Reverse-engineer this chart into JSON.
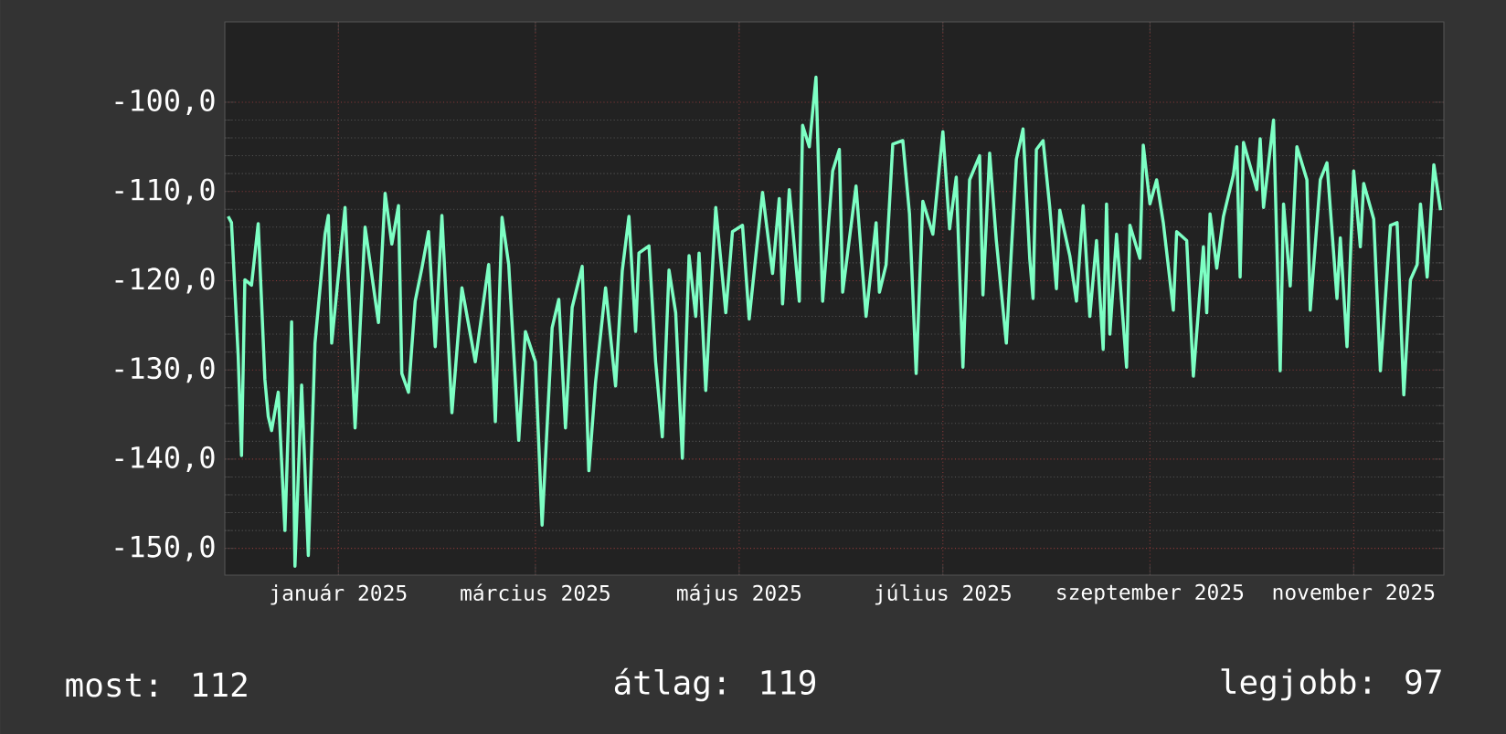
{
  "chart_data": {
    "type": "line",
    "color": "#7dffc4",
    "grid": true,
    "xlim": [
      "2024-11-28",
      "2025-11-28"
    ],
    "ylim": [
      -153,
      -91
    ],
    "xticks": [
      {
        "value": "2025-01-01",
        "label": "január 2025"
      },
      {
        "value": "2025-03-01",
        "label": "március 2025"
      },
      {
        "value": "2025-05-01",
        "label": "május 2025"
      },
      {
        "value": "2025-07-01",
        "label": "július 2025"
      },
      {
        "value": "2025-09-01",
        "label": "szeptember 2025"
      },
      {
        "value": "2025-11-01",
        "label": "november 2025"
      }
    ],
    "yticks": [
      {
        "value": -100,
        "label": "-100,0"
      },
      {
        "value": -110,
        "label": "-110,0"
      },
      {
        "value": -120,
        "label": "-120,0"
      },
      {
        "value": -130,
        "label": "-130,0"
      },
      {
        "value": -140,
        "label": "-140,0"
      },
      {
        "value": -150,
        "label": "-150,0"
      }
    ],
    "x": [
      "2024-11-29",
      "2024-11-30",
      "2024-12-02",
      "2024-12-03",
      "2024-12-04",
      "2024-12-06",
      "2024-12-08",
      "2024-12-10",
      "2024-12-11",
      "2024-12-12",
      "2024-12-14",
      "2024-12-16",
      "2024-12-18",
      "2024-12-19",
      "2024-12-21",
      "2024-12-23",
      "2024-12-25",
      "2024-12-28",
      "2024-12-29",
      "2024-12-30",
      "2025-01-03",
      "2025-01-04",
      "2025-01-06",
      "2025-01-09",
      "2025-01-13",
      "2025-01-15",
      "2025-01-17",
      "2025-01-19",
      "2025-01-20",
      "2025-01-22",
      "2025-01-24",
      "2025-01-26",
      "2025-01-28",
      "2025-01-30",
      "2025-02-01",
      "2025-02-04",
      "2025-02-07",
      "2025-02-11",
      "2025-02-13",
      "2025-02-15",
      "2025-02-17",
      "2025-02-19",
      "2025-02-21",
      "2025-02-24",
      "2025-02-26",
      "2025-03-01",
      "2025-03-03",
      "2025-03-06",
      "2025-03-08",
      "2025-03-10",
      "2025-03-12",
      "2025-03-15",
      "2025-03-17",
      "2025-03-19",
      "2025-03-22",
      "2025-03-25",
      "2025-03-27",
      "2025-03-29",
      "2025-03-31",
      "2025-04-01",
      "2025-04-04",
      "2025-04-06",
      "2025-04-08",
      "2025-04-10",
      "2025-04-12",
      "2025-04-14",
      "2025-04-16",
      "2025-04-18",
      "2025-04-19",
      "2025-04-21",
      "2025-04-24",
      "2025-04-27",
      "2025-04-29",
      "2025-05-02",
      "2025-05-04",
      "2025-05-08",
      "2025-05-11",
      "2025-05-13",
      "2025-05-14",
      "2025-05-16",
      "2025-05-19",
      "2025-05-20",
      "2025-05-22",
      "2025-05-24",
      "2025-05-25",
      "2025-05-26",
      "2025-05-29",
      "2025-05-31",
      "2025-06-01",
      "2025-06-05",
      "2025-06-08",
      "2025-06-11",
      "2025-06-12",
      "2025-06-14",
      "2025-06-16",
      "2025-06-19",
      "2025-06-21",
      "2025-06-23",
      "2025-06-25",
      "2025-06-28",
      "2025-07-01",
      "2025-07-03",
      "2025-07-05",
      "2025-07-07",
      "2025-07-09",
      "2025-07-12",
      "2025-07-13",
      "2025-07-15",
      "2025-07-17",
      "2025-07-20",
      "2025-07-23",
      "2025-07-25",
      "2025-07-27",
      "2025-07-28",
      "2025-07-29",
      "2025-07-31",
      "2025-08-02",
      "2025-08-04",
      "2025-08-05",
      "2025-08-08",
      "2025-08-10",
      "2025-08-12",
      "2025-08-14",
      "2025-08-16",
      "2025-08-18",
      "2025-08-19",
      "2025-08-20",
      "2025-08-22",
      "2025-08-25",
      "2025-08-26",
      "2025-08-29",
      "2025-08-30",
      "2025-09-01",
      "2025-09-03",
      "2025-09-05",
      "2025-09-08",
      "2025-09-09",
      "2025-09-12",
      "2025-09-14",
      "2025-09-17",
      "2025-09-18",
      "2025-09-19",
      "2025-09-21",
      "2025-09-23",
      "2025-09-26",
      "2025-09-27",
      "2025-09-28",
      "2025-09-29",
      "2025-10-03",
      "2025-10-04",
      "2025-10-05",
      "2025-10-08",
      "2025-10-10",
      "2025-10-11",
      "2025-10-13",
      "2025-10-15",
      "2025-10-18",
      "2025-10-19",
      "2025-10-22",
      "2025-10-24",
      "2025-10-27",
      "2025-10-28",
      "2025-10-30",
      "2025-11-01",
      "2025-11-03",
      "2025-11-04",
      "2025-11-07",
      "2025-11-09",
      "2025-11-12",
      "2025-11-14",
      "2025-11-16",
      "2025-11-18",
      "2025-11-20",
      "2025-11-21",
      "2025-11-23",
      "2025-11-25",
      "2025-11-27"
    ],
    "values": [
      -112.8,
      -113.5,
      -128.4,
      -139.6,
      -119.9,
      -120.5,
      -113.6,
      -131.1,
      -135.2,
      -136.8,
      -132.5,
      -148.0,
      -124.6,
      -152.0,
      -131.7,
      -150.8,
      -127.0,
      -114.8,
      -112.7,
      -127.0,
      -111.8,
      -120.3,
      -136.5,
      -114.0,
      -124.7,
      -110.2,
      -115.9,
      -111.6,
      -130.4,
      -132.5,
      -122.3,
      -118.6,
      -114.5,
      -127.4,
      -112.7,
      -134.8,
      -120.8,
      -129.1,
      -123.6,
      -118.2,
      -135.8,
      -112.9,
      -118.2,
      -137.9,
      -125.7,
      -129.1,
      -147.4,
      -125.3,
      -122.1,
      -136.5,
      -123.0,
      -118.4,
      -141.3,
      -131.4,
      -120.8,
      -131.8,
      -118.9,
      -112.8,
      -125.7,
      -116.9,
      -116.1,
      -129.1,
      -137.5,
      -118.8,
      -123.6,
      -139.9,
      -117.2,
      -124.0,
      -116.9,
      -132.3,
      -111.8,
      -123.6,
      -114.5,
      -113.8,
      -124.3,
      -110.1,
      -119.2,
      -110.8,
      -122.6,
      -109.8,
      -122.3,
      -102.6,
      -105.0,
      -97.2,
      -110.1,
      -122.3,
      -107.7,
      -105.3,
      -121.3,
      -109.4,
      -124.0,
      -113.5,
      -121.3,
      -118.2,
      -104.7,
      -104.3,
      -112.5,
      -130.4,
      -111.1,
      -114.8,
      -103.3,
      -114.2,
      -108.4,
      -129.7,
      -108.7,
      -106.0,
      -121.6,
      -105.7,
      -115.5,
      -127.0,
      -106.4,
      -103.0,
      -117.5,
      -122.0,
      -105.3,
      -104.3,
      -111.8,
      -120.9,
      -112.1,
      -117.2,
      -122.3,
      -111.6,
      -124.0,
      -115.5,
      -127.7,
      -111.4,
      -126.0,
      -114.8,
      -129.7,
      -113.8,
      -117.5,
      -104.8,
      -111.4,
      -108.7,
      -113.5,
      -123.3,
      -114.5,
      -115.5,
      -130.7,
      -116.2,
      -123.6,
      -112.5,
      -118.6,
      -112.8,
      -108.1,
      -105.0,
      -119.6,
      -104.5,
      -109.8,
      -104.1,
      -111.8,
      -102.0,
      -130.1,
      -111.4,
      -120.6,
      -105.0,
      -108.7,
      -123.3,
      -108.7,
      -106.8,
      -122.0,
      -115.2,
      -127.4,
      -107.7,
      -116.2,
      -109.1,
      -113.1,
      -130.1,
      -113.8,
      -113.5,
      -132.8,
      -119.9,
      -118.2,
      -111.4,
      -119.6,
      -107.0,
      -112.1
    ],
    "annotations": [
      "most: 112",
      "átlag: 119",
      "legjobb: 97"
    ]
  }
}
